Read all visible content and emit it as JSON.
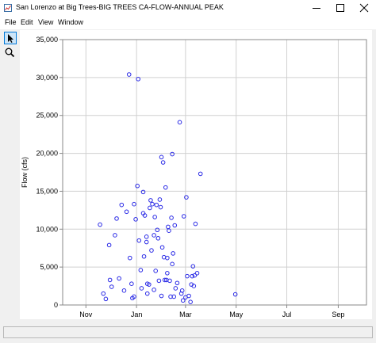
{
  "window": {
    "title": "San Lorenzo at Big Trees-BIG TREES CA-FLOW-ANNUAL PEAK"
  },
  "menu": {
    "items": [
      "File",
      "Edit",
      "View",
      "Window"
    ]
  },
  "toolbar": {
    "tools": [
      {
        "name": "pointer-tool",
        "icon": "arrow-pointer-icon",
        "active": true
      },
      {
        "name": "zoom-tool",
        "icon": "magnifier-icon",
        "active": false
      }
    ]
  },
  "colors": {
    "point": "#2a2ae6",
    "grid": "#d0d0d0",
    "axis": "#888888"
  },
  "chart_data": {
    "type": "scatter",
    "ylabel": "Flow (cfs)",
    "xlabel": "",
    "title": "",
    "ylim": [
      0,
      35000
    ],
    "yticks": [
      "0",
      "5,000",
      "10,000",
      "15,000",
      "20,000",
      "25,000",
      "30,000",
      "35,000"
    ],
    "ytick_values": [
      0,
      5000,
      10000,
      15000,
      20000,
      25000,
      30000,
      35000
    ],
    "xticks": [
      "Nov",
      "Jan",
      "Mar",
      "May",
      "Jul",
      "Sep"
    ],
    "xtick_days": [
      0,
      61,
      120,
      181,
      242,
      304
    ],
    "xlim_days": [
      -28,
      338
    ],
    "x_unit": "day of water year from Nov 1",
    "grid": true,
    "marker": "hollow-circle",
    "points": [
      [
        17,
        10600
      ],
      [
        21,
        1500
      ],
      [
        24,
        800
      ],
      [
        29,
        3300
      ],
      [
        28,
        7900
      ],
      [
        31,
        2400
      ],
      [
        35,
        9200
      ],
      [
        37,
        11400
      ],
      [
        40,
        3500
      ],
      [
        43,
        13200
      ],
      [
        46,
        1900
      ],
      [
        49,
        12300
      ],
      [
        52,
        30400
      ],
      [
        53,
        6200
      ],
      [
        55,
        2800
      ],
      [
        56,
        900
      ],
      [
        58,
        1100
      ],
      [
        58,
        13300
      ],
      [
        60,
        11300
      ],
      [
        62,
        15700
      ],
      [
        63,
        29800
      ],
      [
        64,
        8500
      ],
      [
        66,
        4600
      ],
      [
        67,
        2200
      ],
      [
        69,
        12100
      ],
      [
        69,
        14900
      ],
      [
        70,
        6400
      ],
      [
        71,
        11800
      ],
      [
        73,
        9000
      ],
      [
        73,
        8300
      ],
      [
        74,
        2800
      ],
      [
        74,
        1500
      ],
      [
        76,
        2700
      ],
      [
        77,
        12800
      ],
      [
        78,
        13800
      ],
      [
        79,
        7200
      ],
      [
        80,
        13300
      ],
      [
        82,
        9200
      ],
      [
        82,
        2000
      ],
      [
        83,
        11600
      ],
      [
        84,
        4500
      ],
      [
        85,
        13200
      ],
      [
        86,
        9900
      ],
      [
        87,
        8800
      ],
      [
        88,
        3200
      ],
      [
        89,
        13900
      ],
      [
        90,
        12900
      ],
      [
        91,
        19500
      ],
      [
        91,
        1200
      ],
      [
        92,
        7600
      ],
      [
        93,
        18800
      ],
      [
        94,
        6300
      ],
      [
        95,
        3300
      ],
      [
        96,
        15500
      ],
      [
        97,
        3300
      ],
      [
        98,
        4200
      ],
      [
        98,
        6200
      ],
      [
        99,
        10300
      ],
      [
        100,
        9800
      ],
      [
        101,
        3200
      ],
      [
        102,
        1100
      ],
      [
        103,
        11500
      ],
      [
        104,
        5400
      ],
      [
        104,
        19900
      ],
      [
        105,
        6800
      ],
      [
        106,
        1100
      ],
      [
        107,
        10500
      ],
      [
        108,
        2200
      ],
      [
        110,
        2900
      ],
      [
        113,
        24100
      ],
      [
        115,
        1500
      ],
      [
        116,
        1900
      ],
      [
        117,
        600
      ],
      [
        118,
        11700
      ],
      [
        120,
        1000
      ],
      [
        121,
        14200
      ],
      [
        122,
        3800
      ],
      [
        124,
        1200
      ],
      [
        126,
        400
      ],
      [
        127,
        2700
      ],
      [
        128,
        3800
      ],
      [
        129,
        5100
      ],
      [
        130,
        2500
      ],
      [
        131,
        3900
      ],
      [
        132,
        10700
      ],
      [
        134,
        4200
      ],
      [
        138,
        17300
      ],
      [
        180,
        1400
      ]
    ]
  }
}
